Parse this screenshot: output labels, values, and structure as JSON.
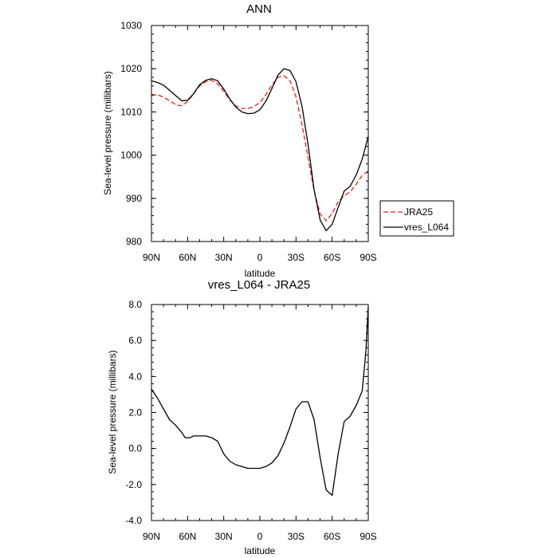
{
  "chart_data": [
    {
      "type": "line",
      "title": "ANN",
      "xlabel": "latitude",
      "ylabel": "Sea-level pressure (millibars)",
      "x_ticks": [
        {
          "value": 90,
          "label": "90N"
        },
        {
          "value": 60,
          "label": "60N"
        },
        {
          "value": 30,
          "label": "30N"
        },
        {
          "value": 0,
          "label": "0"
        },
        {
          "value": -30,
          "label": "30S"
        },
        {
          "value": -60,
          "label": "60S"
        },
        {
          "value": -90,
          "label": "90S"
        }
      ],
      "y_ticks": [
        {
          "value": 980,
          "label": "980"
        },
        {
          "value": 990,
          "label": "990"
        },
        {
          "value": 1000,
          "label": "1000"
        },
        {
          "value": 1010,
          "label": "1010"
        },
        {
          "value": 1020,
          "label": "1020"
        },
        {
          "value": 1030,
          "label": "1030"
        }
      ],
      "xlim": [
        90,
        -90
      ],
      "ylim": [
        980,
        1030
      ],
      "legend": {
        "placement": "right-outside"
      },
      "series": [
        {
          "name": "JRA25",
          "color": "#e8231f",
          "dash": true,
          "x": [
            90,
            85,
            80,
            75,
            70,
            65,
            60,
            55,
            50,
            45,
            40,
            35,
            30,
            25,
            20,
            15,
            10,
            5,
            0,
            -5,
            -10,
            -15,
            -20,
            -25,
            -30,
            -35,
            -40,
            -45,
            -50,
            -55,
            -60,
            -65,
            -70,
            -75,
            -80,
            -85,
            -90
          ],
          "values": [
            1013.8,
            1014.0,
            1013.4,
            1012.6,
            1011.7,
            1011.4,
            1012.4,
            1014.2,
            1016.0,
            1017.0,
            1017.3,
            1016.5,
            1014.8,
            1012.8,
            1011.4,
            1010.8,
            1010.8,
            1011.2,
            1012.2,
            1014.0,
            1016.2,
            1018.0,
            1018.4,
            1017.2,
            1013.5,
            1007.0,
            999.5,
            991.8,
            986.4,
            984.8,
            986.5,
            989.2,
            990.6,
            991.5,
            993.3,
            995.3,
            996.3
          ]
        },
        {
          "name": "vres_L064",
          "color": "#000000",
          "dash": false,
          "x": [
            90,
            85,
            80,
            75,
            70,
            65,
            60,
            55,
            50,
            45,
            40,
            35,
            30,
            25,
            20,
            15,
            10,
            5,
            0,
            -5,
            -10,
            -15,
            -20,
            -25,
            -30,
            -35,
            -40,
            -45,
            -50,
            -55,
            -60,
            -65,
            -70,
            -75,
            -80,
            -85,
            -90
          ],
          "values": [
            1017.2,
            1016.8,
            1016.2,
            1015.0,
            1013.8,
            1012.6,
            1012.7,
            1014.2,
            1016.3,
            1017.3,
            1017.7,
            1017.2,
            1015.3,
            1013.0,
            1011.1,
            1010.0,
            1009.6,
            1009.7,
            1010.5,
            1012.5,
            1015.4,
            1018.5,
            1020.0,
            1019.6,
            1017.0,
            1011.3,
            1002.5,
            992.0,
            985.0,
            982.5,
            984.0,
            987.9,
            991.7,
            992.8,
            995.4,
            999.1,
            1004.3
          ]
        }
      ]
    },
    {
      "type": "line",
      "title": "vres_L064 - JRA25",
      "xlabel": "latitude",
      "ylabel": "Sea-level pressure (millibars)",
      "x_ticks": [
        {
          "value": 90,
          "label": "90N"
        },
        {
          "value": 60,
          "label": "60N"
        },
        {
          "value": 30,
          "label": "30N"
        },
        {
          "value": 0,
          "label": "0"
        },
        {
          "value": -30,
          "label": "30S"
        },
        {
          "value": -60,
          "label": "60S"
        },
        {
          "value": -90,
          "label": "90S"
        }
      ],
      "y_ticks": [
        {
          "value": -4,
          "label": "-4.0"
        },
        {
          "value": -2,
          "label": "-2.0"
        },
        {
          "value": 0,
          "label": "0.0"
        },
        {
          "value": 2,
          "label": "2.0"
        },
        {
          "value": 4,
          "label": "4.0"
        },
        {
          "value": 6,
          "label": "6.0"
        },
        {
          "value": 8,
          "label": "8.0"
        }
      ],
      "xlim": [
        90,
        -90
      ],
      "ylim": [
        -4,
        8
      ],
      "series": [
        {
          "name": "vres_L064 - JRA25",
          "color": "#000000",
          "dash": false,
          "x": [
            90,
            85,
            80,
            75,
            70,
            65,
            62,
            58,
            55,
            50,
            45,
            40,
            35,
            30,
            25,
            20,
            15,
            10,
            5,
            0,
            -5,
            -10,
            -15,
            -20,
            -25,
            -30,
            -35,
            -40,
            -45,
            -50,
            -55,
            -60,
            -65,
            -70,
            -75,
            -80,
            -85,
            -88,
            -90
          ],
          "values": [
            3.3,
            2.8,
            2.2,
            1.6,
            1.3,
            0.9,
            0.6,
            0.6,
            0.7,
            0.7,
            0.7,
            0.6,
            0.4,
            -0.3,
            -0.7,
            -0.9,
            -1.0,
            -1.1,
            -1.1,
            -1.1,
            -1.0,
            -0.8,
            -0.4,
            0.3,
            1.2,
            2.2,
            2.6,
            2.6,
            1.6,
            -0.5,
            -2.3,
            -2.6,
            -0.3,
            1.5,
            1.8,
            2.4,
            3.2,
            5.4,
            7.9
          ]
        }
      ]
    }
  ]
}
